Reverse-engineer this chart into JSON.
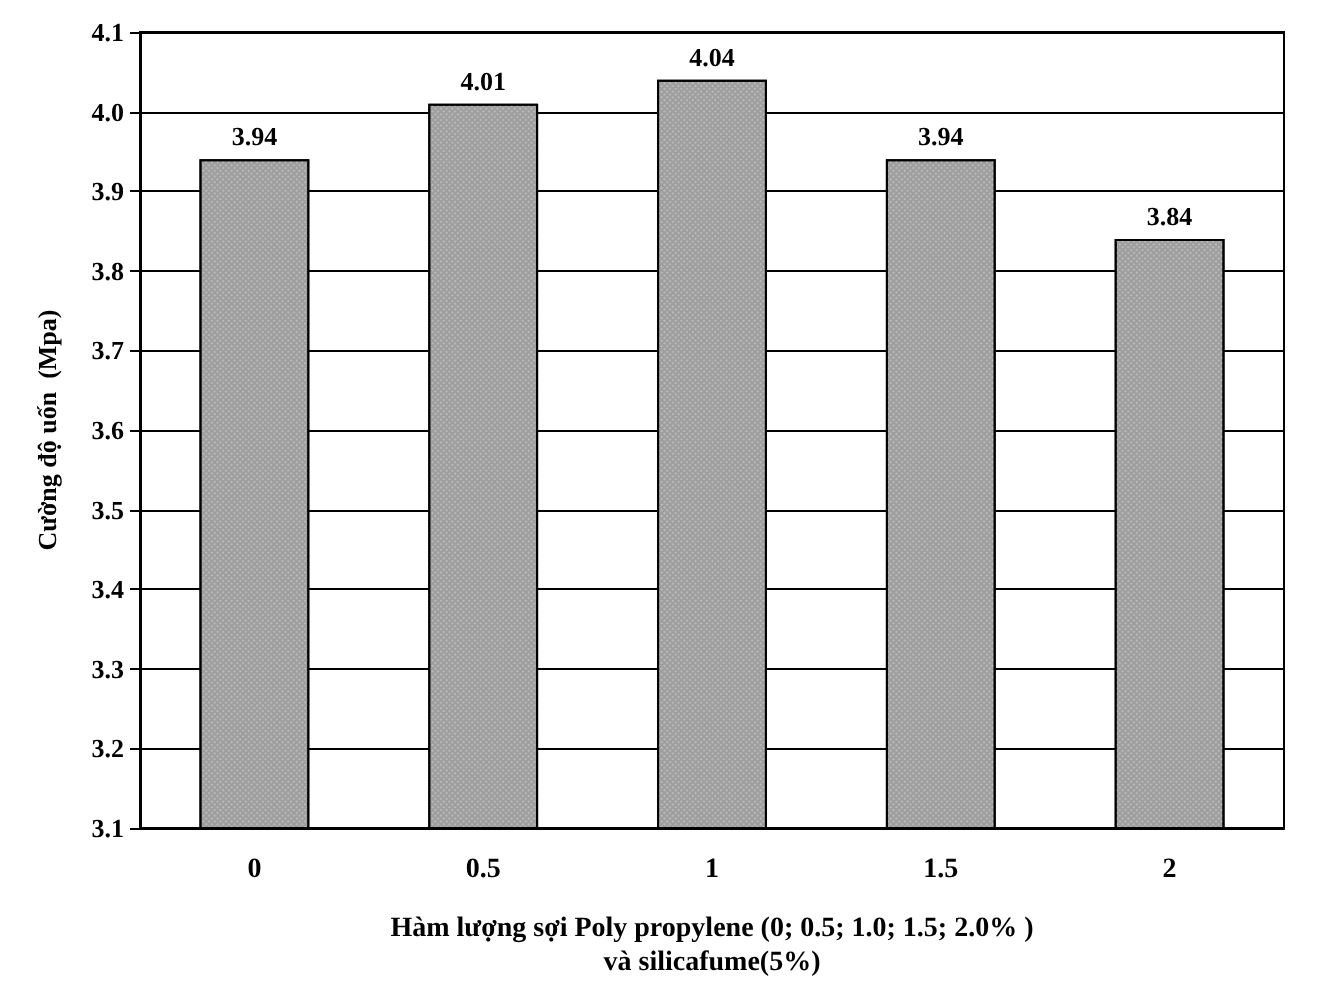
{
  "chart_data": {
    "type": "bar",
    "xlabel": "Hàm lượng sợi Poly propylene (0; 0.5; 1.0; 1.5; 2.0% )\nvà silicafume(5%)",
    "ylabel": "Cường độ uốn  (Mpa)",
    "categories": [
      "0",
      "0.5",
      "1",
      "1.5",
      "2"
    ],
    "values": [
      3.94,
      4.01,
      4.04,
      3.94,
      3.84
    ],
    "color": "#9e9e9e",
    "ylim": [
      3.1,
      4.1
    ],
    "yticks": [
      3.1,
      3.2,
      3.3,
      3.4,
      3.5,
      3.6,
      3.7,
      3.8,
      3.9,
      {
        "value": 4.0,
        "label": "4.0"
      },
      4.1
    ],
    "grid": "y",
    "data_labels": true
  }
}
